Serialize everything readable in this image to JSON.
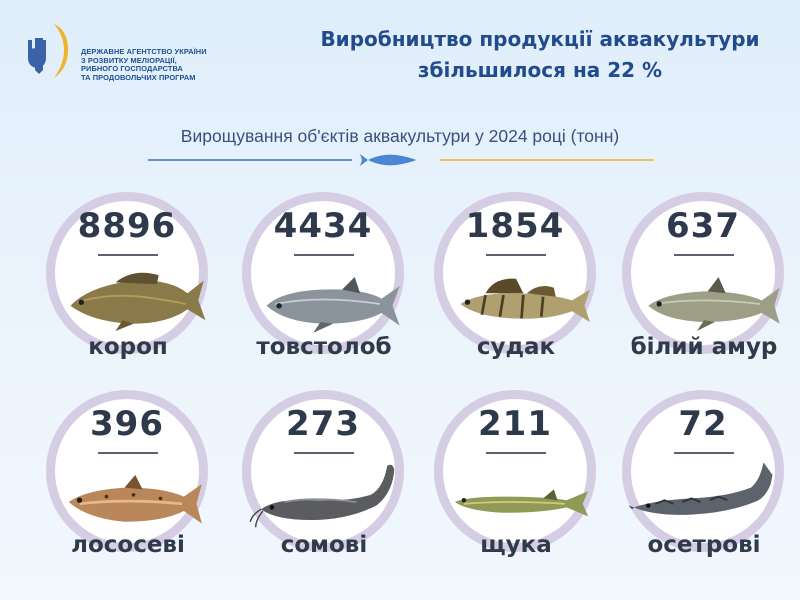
{
  "agency": {
    "lines": [
      "ДЕРЖАВНЕ АГЕНТСТВО УКРАЇНИ",
      "З РОЗВИТКУ МЕЛІОРАЦІЇ,",
      "РИБНОГО ГОСПОДАРСТВА",
      "ТА ПРОДОВОЛЬЧИХ ПРОГРАМ"
    ]
  },
  "headline": {
    "line1": "Виробництво продукції аквакультури",
    "line2": "збільшилося на 22 %"
  },
  "colors": {
    "accent_blue": "#214b8c",
    "ring": "#d5cde4",
    "divider_left": "#3a6fc2",
    "divider_right": "#f0b42a"
  },
  "chart_data": {
    "type": "bar",
    "title": "Вирощування об'єктів аквакультури у 2024 році (тонн)",
    "categories": [
      "короп",
      "товстолоб",
      "судак",
      "білий амур",
      "лососеві",
      "сомові",
      "щука",
      "осетрові"
    ],
    "values": [
      8896,
      4434,
      1854,
      637,
      396,
      273,
      211,
      72
    ],
    "value_labels": [
      "8896",
      "4434",
      "1854",
      "637",
      "396",
      "273",
      "211",
      "72"
    ],
    "fish_icons": [
      "carp-icon",
      "silver-carp-icon",
      "zander-icon",
      "grass-carp-icon",
      "trout-icon",
      "catfish-icon",
      "pike-icon",
      "sturgeon-icon"
    ]
  }
}
